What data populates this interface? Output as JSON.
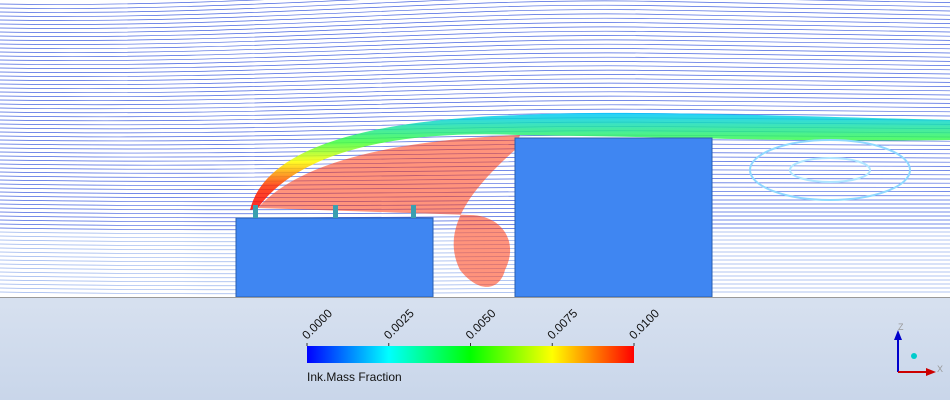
{
  "legend": {
    "title": "Ink.Mass Fraction",
    "range": [
      0,
      0.01
    ],
    "ticks": [
      {
        "value": 0,
        "label": "0.0000"
      },
      {
        "value": 0.0025,
        "label": "0.0025"
      },
      {
        "value": 0.005,
        "label": "0.0050"
      },
      {
        "value": 0.0075,
        "label": "0.0075"
      },
      {
        "value": 0.01,
        "label": "0.0100"
      }
    ]
  },
  "axes": {
    "vertical": "Z",
    "horizontal": "X"
  }
}
